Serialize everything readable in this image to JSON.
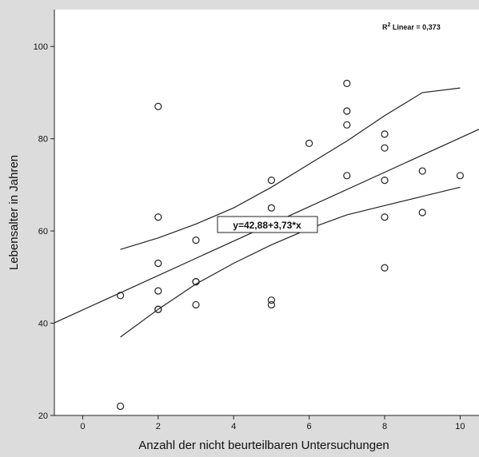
{
  "chart_data": {
    "type": "scatter",
    "xlabel": "Anzahl der nicht beurteilbaren Untersuchungen",
    "ylabel": "Lebensalter in Jahren",
    "xlim": [
      -0.75,
      10.5
    ],
    "ylim": [
      20,
      108
    ],
    "xticks": [
      "0",
      "2",
      "4",
      "6",
      "8",
      "10"
    ],
    "yticks": [
      "20",
      "40",
      "60",
      "80",
      "100"
    ],
    "grid": false,
    "points": [
      {
        "x": 1,
        "y": 46
      },
      {
        "x": 1,
        "y": 22
      },
      {
        "x": 2,
        "y": 87
      },
      {
        "x": 2,
        "y": 63
      },
      {
        "x": 2,
        "y": 53
      },
      {
        "x": 2,
        "y": 47
      },
      {
        "x": 2,
        "y": 43
      },
      {
        "x": 2,
        "y": 43
      },
      {
        "x": 3,
        "y": 58
      },
      {
        "x": 3,
        "y": 49
      },
      {
        "x": 3,
        "y": 49
      },
      {
        "x": 3,
        "y": 44
      },
      {
        "x": 5,
        "y": 71
      },
      {
        "x": 5,
        "y": 65
      },
      {
        "x": 5,
        "y": 45
      },
      {
        "x": 5,
        "y": 44
      },
      {
        "x": 6,
        "y": 79
      },
      {
        "x": 7,
        "y": 92
      },
      {
        "x": 7,
        "y": 86
      },
      {
        "x": 7,
        "y": 83
      },
      {
        "x": 7,
        "y": 72
      },
      {
        "x": 8,
        "y": 81
      },
      {
        "x": 8,
        "y": 78
      },
      {
        "x": 8,
        "y": 71
      },
      {
        "x": 8,
        "y": 63
      },
      {
        "x": 8,
        "y": 52
      },
      {
        "x": 9,
        "y": 73
      },
      {
        "x": 9,
        "y": 64
      },
      {
        "x": 10,
        "y": 72
      }
    ],
    "fit": {
      "intercept": 42.88,
      "slope": 3.73
    },
    "confidence_band": {
      "upper": [
        [
          1,
          56
        ],
        [
          2,
          58.5
        ],
        [
          3,
          61.5
        ],
        [
          4,
          65
        ],
        [
          5,
          69.5
        ],
        [
          6,
          74.5
        ],
        [
          7,
          79.5
        ],
        [
          8,
          85
        ],
        [
          9,
          90
        ],
        [
          10,
          91
        ]
      ],
      "lower": [
        [
          1,
          37
        ],
        [
          2,
          43
        ],
        [
          3,
          48.5
        ],
        [
          4,
          53
        ],
        [
          5,
          57
        ],
        [
          6,
          60.5
        ],
        [
          7,
          63.5
        ],
        [
          8,
          65.5
        ],
        [
          9,
          67.5
        ],
        [
          10,
          69.5
        ]
      ]
    },
    "annotations": {
      "r2_label": "R",
      "r2_sup": "2",
      "r2_text": " Linear = 0,373",
      "equation": "y=42,88+3,73*x"
    }
  }
}
